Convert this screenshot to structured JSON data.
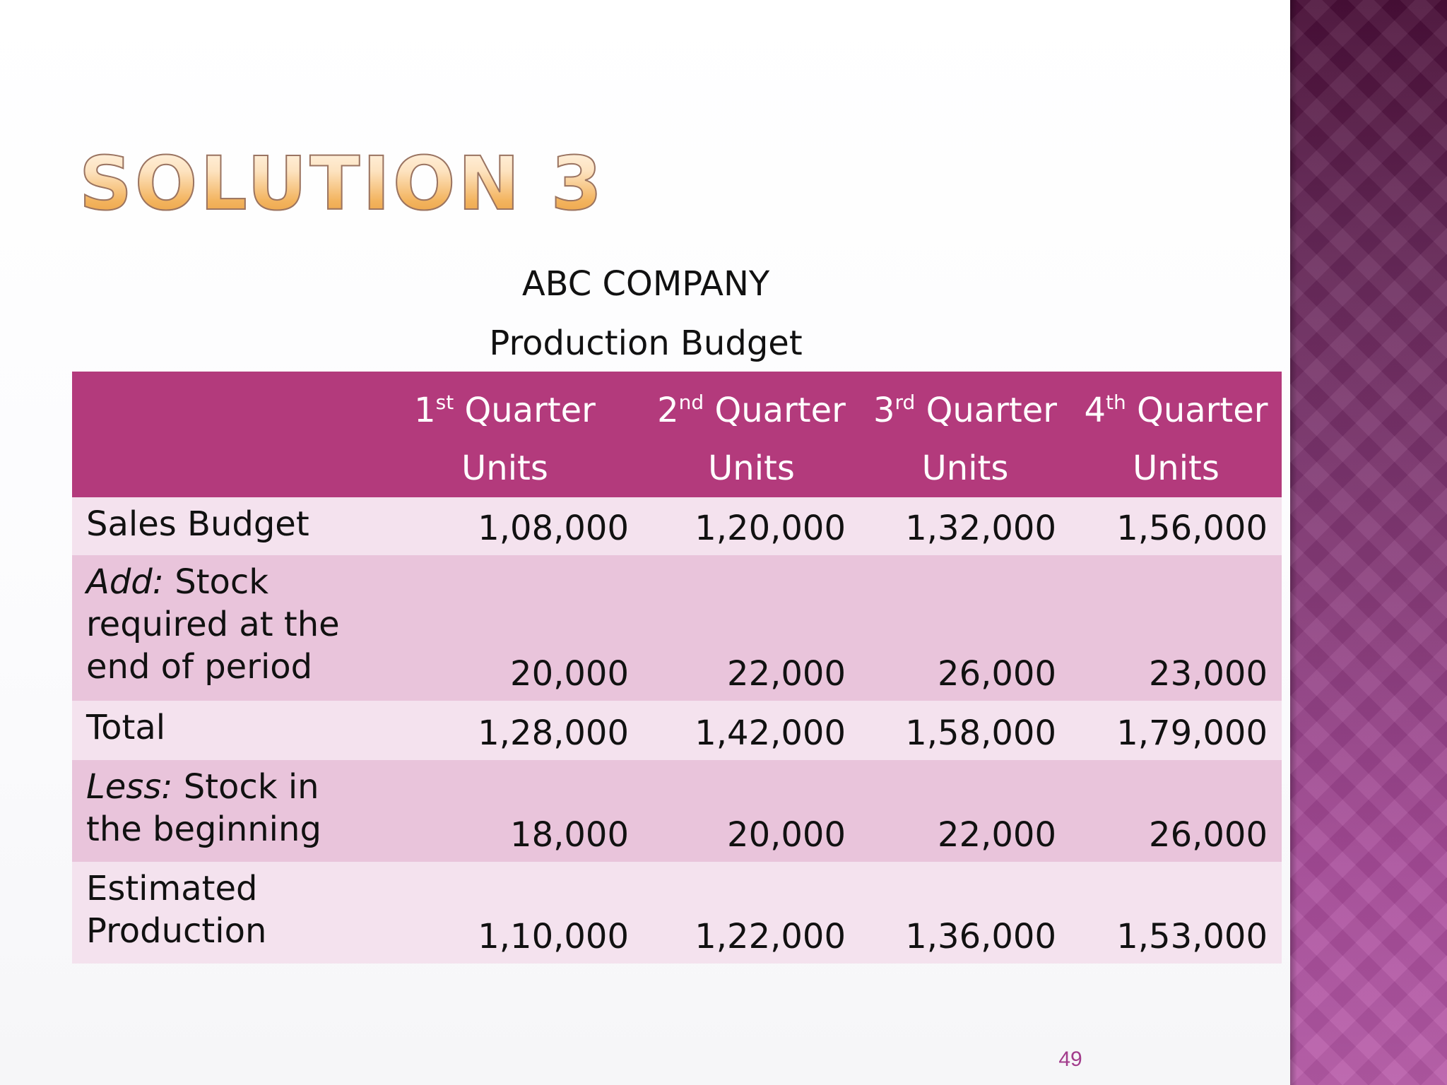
{
  "slide": {
    "title": "SOLUTION 3",
    "company": "ABC COMPANY",
    "subtitle": "Production Budget",
    "page_number": "49"
  },
  "table": {
    "columns": [
      {
        "num": "1",
        "suffix": "st",
        "label": "Quarter",
        "unit": "Units"
      },
      {
        "num": "2",
        "suffix": "nd",
        "label": "Quarter",
        "unit": "Units"
      },
      {
        "num": "3",
        "suffix": "rd",
        "label": "Quarter",
        "unit": "Units"
      },
      {
        "num": "4",
        "suffix": "th",
        "label": "Quarter",
        "unit": "Units"
      }
    ],
    "rows": [
      {
        "prefix": "",
        "label_line1": "Sales Budget",
        "label_rest": [],
        "values": [
          "1,08,000",
          "1,20,000",
          "1,32,000",
          "1,56,000"
        ]
      },
      {
        "prefix": "Add:",
        "label_line1": "Stock",
        "label_rest": [
          "required at the",
          "end of period"
        ],
        "values": [
          "20,000",
          "22,000",
          "26,000",
          "23,000"
        ]
      },
      {
        "prefix": "",
        "label_line1": "Total",
        "label_rest": [],
        "values": [
          "1,28,000",
          "1,42,000",
          "1,58,000",
          "1,79,000"
        ]
      },
      {
        "prefix": "Less:",
        "label_line1": "Stock in",
        "label_rest": [
          "the beginning"
        ],
        "values": [
          "18,000",
          "20,000",
          "22,000",
          "26,000"
        ]
      },
      {
        "prefix": "",
        "label_line1": "Estimated",
        "label_rest": [
          "Production"
        ],
        "values": [
          "1,10,000",
          "1,22,000",
          "1,36,000",
          "1,53,000"
        ]
      }
    ]
  },
  "colors": {
    "header_bg": "#b33a7c",
    "row_light": "#f4e2ee",
    "row_dark": "#e9c4db",
    "title_gradient": [
      "#fff6ea",
      "#e89a3a"
    ],
    "page_number": "#a23c8c"
  }
}
